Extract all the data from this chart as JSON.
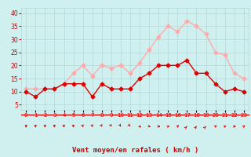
{
  "hours": [
    0,
    1,
    2,
    3,
    4,
    5,
    6,
    7,
    8,
    9,
    10,
    11,
    12,
    13,
    14,
    15,
    16,
    17,
    18,
    19,
    20,
    21,
    22,
    23
  ],
  "wind_avg": [
    10,
    8,
    11,
    11,
    13,
    13,
    13,
    8,
    13,
    11,
    11,
    11,
    15,
    17,
    20,
    20,
    20,
    22,
    17,
    17,
    13,
    10,
    11,
    10
  ],
  "wind_gust": [
    11,
    11,
    11,
    11,
    13,
    17,
    20,
    16,
    20,
    19,
    20,
    17,
    21,
    26,
    31,
    35,
    33,
    37,
    35,
    32,
    25,
    24,
    17,
    15
  ],
  "color_avg": "#dd0000",
  "color_gust": "#ffaaaa",
  "bg_color": "#d0f0f0",
  "grid_color": "#b0d8d8",
  "xlabel": "Vent moyen/en rafales ( km/h )",
  "xlabel_color": "#cc0000",
  "ylabel_color": "#cc0000",
  "yticks": [
    5,
    10,
    15,
    20,
    25,
    30,
    35,
    40
  ],
  "ylim": [
    3,
    42
  ],
  "xlim": [
    -0.5,
    23.5
  ],
  "markersize": 2.5,
  "linewidth": 1.0,
  "axis_fontsize": 6.5,
  "tick_fontsize": 5.5,
  "arrow_angles_deg": [
    175,
    170,
    168,
    165,
    163,
    158,
    150,
    145,
    138,
    132,
    125,
    118,
    110,
    100,
    90,
    80,
    70,
    65,
    58,
    65,
    72,
    80,
    90,
    75
  ]
}
